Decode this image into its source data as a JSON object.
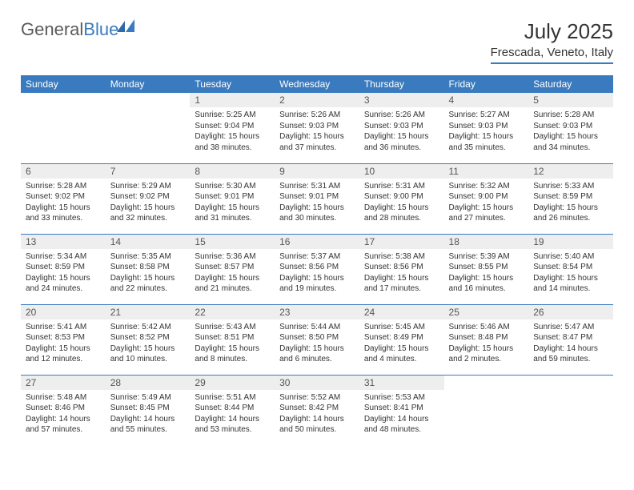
{
  "brand": {
    "general": "General",
    "blue": "Blue"
  },
  "title": "July 2025",
  "location": "Frescada, Veneto, Italy",
  "colors": {
    "header_bg": "#3a7bbf",
    "header_text": "#ffffff",
    "daynum_bg": "#eeeeee",
    "border": "#3a7bbf",
    "text": "#333333"
  },
  "weekdays": [
    "Sunday",
    "Monday",
    "Tuesday",
    "Wednesday",
    "Thursday",
    "Friday",
    "Saturday"
  ],
  "weeks": [
    [
      null,
      null,
      {
        "n": "1",
        "sr": "5:25 AM",
        "ss": "9:04 PM",
        "dl": "15 hours and 38 minutes."
      },
      {
        "n": "2",
        "sr": "5:26 AM",
        "ss": "9:03 PM",
        "dl": "15 hours and 37 minutes."
      },
      {
        "n": "3",
        "sr": "5:26 AM",
        "ss": "9:03 PM",
        "dl": "15 hours and 36 minutes."
      },
      {
        "n": "4",
        "sr": "5:27 AM",
        "ss": "9:03 PM",
        "dl": "15 hours and 35 minutes."
      },
      {
        "n": "5",
        "sr": "5:28 AM",
        "ss": "9:03 PM",
        "dl": "15 hours and 34 minutes."
      }
    ],
    [
      {
        "n": "6",
        "sr": "5:28 AM",
        "ss": "9:02 PM",
        "dl": "15 hours and 33 minutes."
      },
      {
        "n": "7",
        "sr": "5:29 AM",
        "ss": "9:02 PM",
        "dl": "15 hours and 32 minutes."
      },
      {
        "n": "8",
        "sr": "5:30 AM",
        "ss": "9:01 PM",
        "dl": "15 hours and 31 minutes."
      },
      {
        "n": "9",
        "sr": "5:31 AM",
        "ss": "9:01 PM",
        "dl": "15 hours and 30 minutes."
      },
      {
        "n": "10",
        "sr": "5:31 AM",
        "ss": "9:00 PM",
        "dl": "15 hours and 28 minutes."
      },
      {
        "n": "11",
        "sr": "5:32 AM",
        "ss": "9:00 PM",
        "dl": "15 hours and 27 minutes."
      },
      {
        "n": "12",
        "sr": "5:33 AM",
        "ss": "8:59 PM",
        "dl": "15 hours and 26 minutes."
      }
    ],
    [
      {
        "n": "13",
        "sr": "5:34 AM",
        "ss": "8:59 PM",
        "dl": "15 hours and 24 minutes."
      },
      {
        "n": "14",
        "sr": "5:35 AM",
        "ss": "8:58 PM",
        "dl": "15 hours and 22 minutes."
      },
      {
        "n": "15",
        "sr": "5:36 AM",
        "ss": "8:57 PM",
        "dl": "15 hours and 21 minutes."
      },
      {
        "n": "16",
        "sr": "5:37 AM",
        "ss": "8:56 PM",
        "dl": "15 hours and 19 minutes."
      },
      {
        "n": "17",
        "sr": "5:38 AM",
        "ss": "8:56 PM",
        "dl": "15 hours and 17 minutes."
      },
      {
        "n": "18",
        "sr": "5:39 AM",
        "ss": "8:55 PM",
        "dl": "15 hours and 16 minutes."
      },
      {
        "n": "19",
        "sr": "5:40 AM",
        "ss": "8:54 PM",
        "dl": "15 hours and 14 minutes."
      }
    ],
    [
      {
        "n": "20",
        "sr": "5:41 AM",
        "ss": "8:53 PM",
        "dl": "15 hours and 12 minutes."
      },
      {
        "n": "21",
        "sr": "5:42 AM",
        "ss": "8:52 PM",
        "dl": "15 hours and 10 minutes."
      },
      {
        "n": "22",
        "sr": "5:43 AM",
        "ss": "8:51 PM",
        "dl": "15 hours and 8 minutes."
      },
      {
        "n": "23",
        "sr": "5:44 AM",
        "ss": "8:50 PM",
        "dl": "15 hours and 6 minutes."
      },
      {
        "n": "24",
        "sr": "5:45 AM",
        "ss": "8:49 PM",
        "dl": "15 hours and 4 minutes."
      },
      {
        "n": "25",
        "sr": "5:46 AM",
        "ss": "8:48 PM",
        "dl": "15 hours and 2 minutes."
      },
      {
        "n": "26",
        "sr": "5:47 AM",
        "ss": "8:47 PM",
        "dl": "14 hours and 59 minutes."
      }
    ],
    [
      {
        "n": "27",
        "sr": "5:48 AM",
        "ss": "8:46 PM",
        "dl": "14 hours and 57 minutes."
      },
      {
        "n": "28",
        "sr": "5:49 AM",
        "ss": "8:45 PM",
        "dl": "14 hours and 55 minutes."
      },
      {
        "n": "29",
        "sr": "5:51 AM",
        "ss": "8:44 PM",
        "dl": "14 hours and 53 minutes."
      },
      {
        "n": "30",
        "sr": "5:52 AM",
        "ss": "8:42 PM",
        "dl": "14 hours and 50 minutes."
      },
      {
        "n": "31",
        "sr": "5:53 AM",
        "ss": "8:41 PM",
        "dl": "14 hours and 48 minutes."
      },
      null,
      null
    ]
  ],
  "labels": {
    "sunrise": "Sunrise: ",
    "sunset": "Sunset: ",
    "daylight": "Daylight: "
  }
}
